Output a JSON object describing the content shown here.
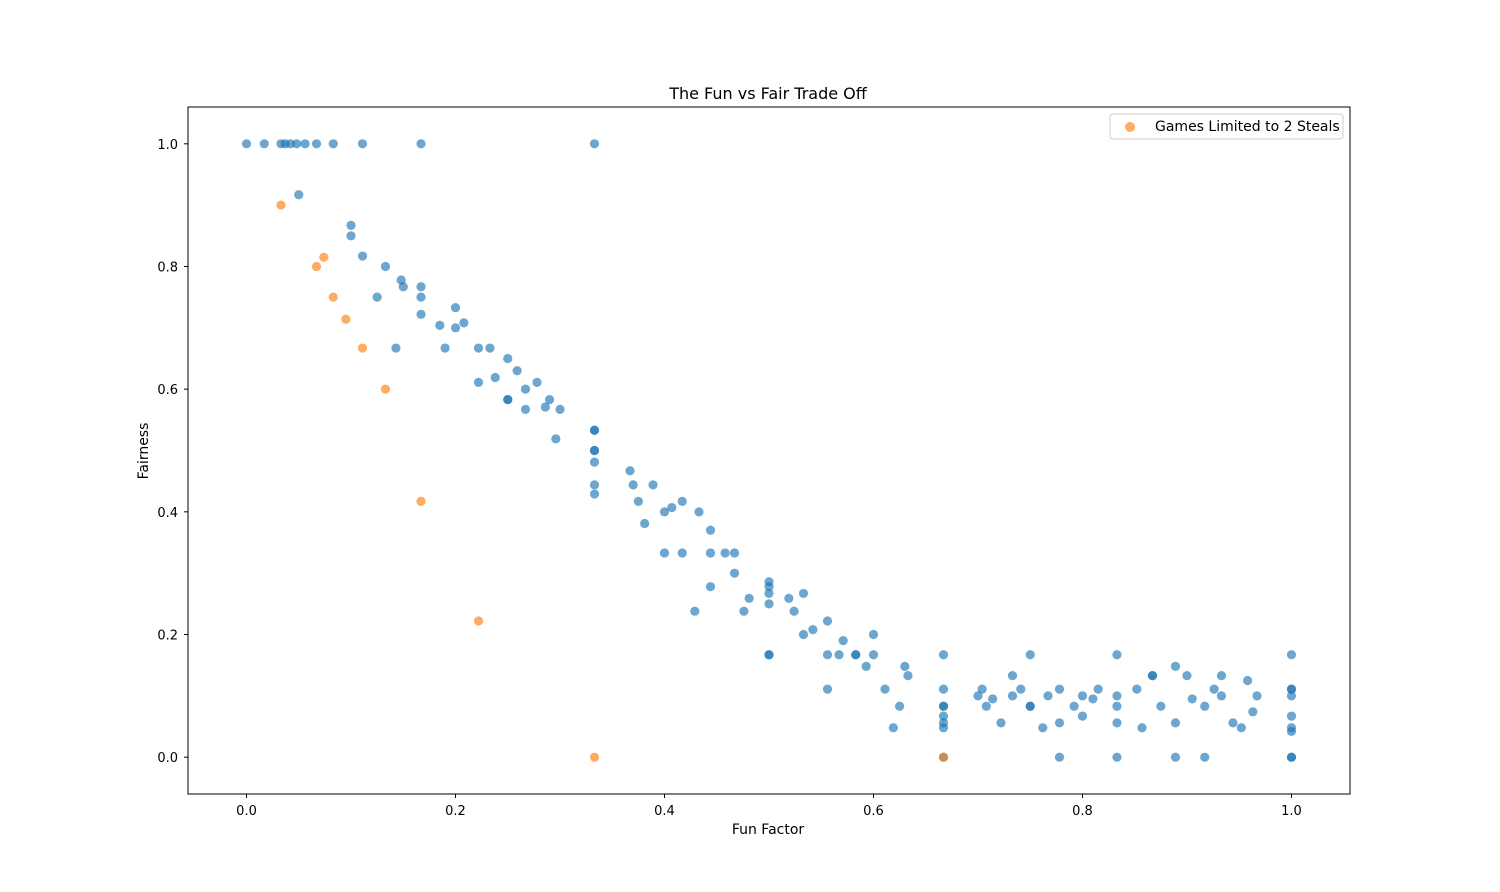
{
  "chart_data": {
    "type": "scatter",
    "title": "The Fun vs Fair Trade Off",
    "xlabel": "Fun Factor",
    "ylabel": "Fairness",
    "xlim": [
      -0.056,
      1.056
    ],
    "ylim": [
      -0.06,
      1.06
    ],
    "xticks": [
      0.0,
      0.2,
      0.4,
      0.6,
      0.8,
      1.0
    ],
    "xtick_labels": [
      "0.0",
      "0.2",
      "0.4",
      "0.6",
      "0.8",
      "1.0"
    ],
    "yticks": [
      0.0,
      0.2,
      0.4,
      0.6,
      0.8,
      1.0
    ],
    "ytick_labels": [
      "0.0",
      "0.2",
      "0.4",
      "0.6",
      "0.8",
      "1.0"
    ],
    "grid": false,
    "legend": {
      "position": "top-right",
      "entries": [
        "Games Limited to 2 Steals"
      ]
    },
    "series": [
      {
        "color": "#1f77b4",
        "opacity": 0.65,
        "points": [
          [
            0.0,
            1.0
          ],
          [
            0.017,
            1.0
          ],
          [
            0.033,
            1.0
          ],
          [
            0.037,
            1.0
          ],
          [
            0.042,
            1.0
          ],
          [
            0.048,
            1.0
          ],
          [
            0.056,
            1.0
          ],
          [
            0.067,
            1.0
          ],
          [
            0.083,
            1.0
          ],
          [
            0.111,
            1.0
          ],
          [
            0.167,
            1.0
          ],
          [
            0.333,
            1.0
          ],
          [
            0.05,
            0.917
          ],
          [
            0.1,
            0.867
          ],
          [
            0.1,
            0.85
          ],
          [
            0.111,
            0.817
          ],
          [
            0.133,
            0.8
          ],
          [
            0.148,
            0.778
          ],
          [
            0.15,
            0.767
          ],
          [
            0.167,
            0.767
          ],
          [
            0.167,
            0.75
          ],
          [
            0.125,
            0.75
          ],
          [
            0.167,
            0.722
          ],
          [
            0.2,
            0.733
          ],
          [
            0.208,
            0.708
          ],
          [
            0.185,
            0.704
          ],
          [
            0.2,
            0.7
          ],
          [
            0.143,
            0.667
          ],
          [
            0.19,
            0.667
          ],
          [
            0.222,
            0.667
          ],
          [
            0.233,
            0.667
          ],
          [
            0.25,
            0.65
          ],
          [
            0.259,
            0.63
          ],
          [
            0.238,
            0.619
          ],
          [
            0.222,
            0.611
          ],
          [
            0.278,
            0.611
          ],
          [
            0.267,
            0.6
          ],
          [
            0.25,
            0.583
          ],
          [
            0.25,
            0.583
          ],
          [
            0.29,
            0.583
          ],
          [
            0.286,
            0.571
          ],
          [
            0.3,
            0.567
          ],
          [
            0.267,
            0.567
          ],
          [
            0.296,
            0.519
          ],
          [
            0.333,
            0.533
          ],
          [
            0.333,
            0.533
          ],
          [
            0.333,
            0.5
          ],
          [
            0.333,
            0.5
          ],
          [
            0.333,
            0.481
          ],
          [
            0.333,
            0.444
          ],
          [
            0.333,
            0.429
          ],
          [
            0.367,
            0.467
          ],
          [
            0.37,
            0.444
          ],
          [
            0.389,
            0.444
          ],
          [
            0.375,
            0.417
          ],
          [
            0.417,
            0.417
          ],
          [
            0.407,
            0.407
          ],
          [
            0.4,
            0.4
          ],
          [
            0.433,
            0.4
          ],
          [
            0.381,
            0.381
          ],
          [
            0.444,
            0.37
          ],
          [
            0.4,
            0.333
          ],
          [
            0.417,
            0.333
          ],
          [
            0.444,
            0.333
          ],
          [
            0.458,
            0.333
          ],
          [
            0.467,
            0.333
          ],
          [
            0.467,
            0.3
          ],
          [
            0.444,
            0.278
          ],
          [
            0.5,
            0.286
          ],
          [
            0.5,
            0.278
          ],
          [
            0.5,
            0.267
          ],
          [
            0.533,
            0.267
          ],
          [
            0.481,
            0.259
          ],
          [
            0.519,
            0.259
          ],
          [
            0.5,
            0.25
          ],
          [
            0.429,
            0.238
          ],
          [
            0.476,
            0.238
          ],
          [
            0.524,
            0.238
          ],
          [
            0.556,
            0.222
          ],
          [
            0.542,
            0.208
          ],
          [
            0.533,
            0.2
          ],
          [
            0.6,
            0.2
          ],
          [
            0.571,
            0.19
          ],
          [
            0.5,
            0.167
          ],
          [
            0.5,
            0.167
          ],
          [
            0.556,
            0.167
          ],
          [
            0.567,
            0.167
          ],
          [
            0.583,
            0.167
          ],
          [
            0.583,
            0.167
          ],
          [
            0.6,
            0.167
          ],
          [
            0.667,
            0.167
          ],
          [
            0.75,
            0.167
          ],
          [
            0.833,
            0.167
          ],
          [
            1.0,
            0.167
          ],
          [
            0.593,
            0.148
          ],
          [
            0.63,
            0.148
          ],
          [
            0.889,
            0.148
          ],
          [
            0.633,
            0.133
          ],
          [
            0.733,
            0.133
          ],
          [
            0.867,
            0.133
          ],
          [
            0.867,
            0.133
          ],
          [
            0.9,
            0.133
          ],
          [
            0.933,
            0.133
          ],
          [
            0.958,
            0.125
          ],
          [
            0.556,
            0.111
          ],
          [
            0.611,
            0.111
          ],
          [
            0.667,
            0.111
          ],
          [
            0.704,
            0.111
          ],
          [
            0.741,
            0.111
          ],
          [
            0.778,
            0.111
          ],
          [
            0.815,
            0.111
          ],
          [
            0.852,
            0.111
          ],
          [
            0.926,
            0.111
          ],
          [
            1.0,
            0.111
          ],
          [
            1.0,
            0.111
          ],
          [
            0.7,
            0.1
          ],
          [
            0.733,
            0.1
          ],
          [
            0.767,
            0.1
          ],
          [
            0.8,
            0.1
          ],
          [
            0.833,
            0.1
          ],
          [
            0.933,
            0.1
          ],
          [
            0.967,
            0.1
          ],
          [
            1.0,
            0.1
          ],
          [
            0.714,
            0.095
          ],
          [
            0.81,
            0.095
          ],
          [
            0.905,
            0.095
          ],
          [
            0.625,
            0.083
          ],
          [
            0.667,
            0.083
          ],
          [
            0.667,
            0.083
          ],
          [
            0.708,
            0.083
          ],
          [
            0.75,
            0.083
          ],
          [
            0.75,
            0.083
          ],
          [
            0.792,
            0.083
          ],
          [
            0.833,
            0.083
          ],
          [
            0.875,
            0.083
          ],
          [
            0.917,
            0.083
          ],
          [
            0.963,
            0.074
          ],
          [
            0.667,
            0.067
          ],
          [
            0.8,
            0.067
          ],
          [
            1.0,
            0.067
          ],
          [
            0.667,
            0.056
          ],
          [
            0.722,
            0.056
          ],
          [
            0.778,
            0.056
          ],
          [
            0.833,
            0.056
          ],
          [
            0.889,
            0.056
          ],
          [
            0.944,
            0.056
          ],
          [
            0.619,
            0.048
          ],
          [
            0.667,
            0.048
          ],
          [
            0.762,
            0.048
          ],
          [
            0.857,
            0.048
          ],
          [
            0.952,
            0.048
          ],
          [
            1.0,
            0.048
          ],
          [
            1.0,
            0.042
          ],
          [
            0.667,
            0.0
          ],
          [
            0.778,
            0.0
          ],
          [
            0.833,
            0.0
          ],
          [
            0.889,
            0.0
          ],
          [
            0.917,
            0.0
          ],
          [
            1.0,
            0.0
          ],
          [
            1.0,
            0.0
          ]
        ]
      },
      {
        "name": "Games Limited to 2 Steals",
        "color": "#ff7f0e",
        "opacity": 0.65,
        "points": [
          [
            0.033,
            0.9
          ],
          [
            0.074,
            0.815
          ],
          [
            0.067,
            0.8
          ],
          [
            0.083,
            0.75
          ],
          [
            0.095,
            0.714
          ],
          [
            0.111,
            0.667
          ],
          [
            0.133,
            0.6
          ],
          [
            0.167,
            0.417
          ],
          [
            0.222,
            0.222
          ],
          [
            0.333,
            0.0
          ],
          [
            0.667,
            0.0
          ]
        ]
      }
    ]
  }
}
